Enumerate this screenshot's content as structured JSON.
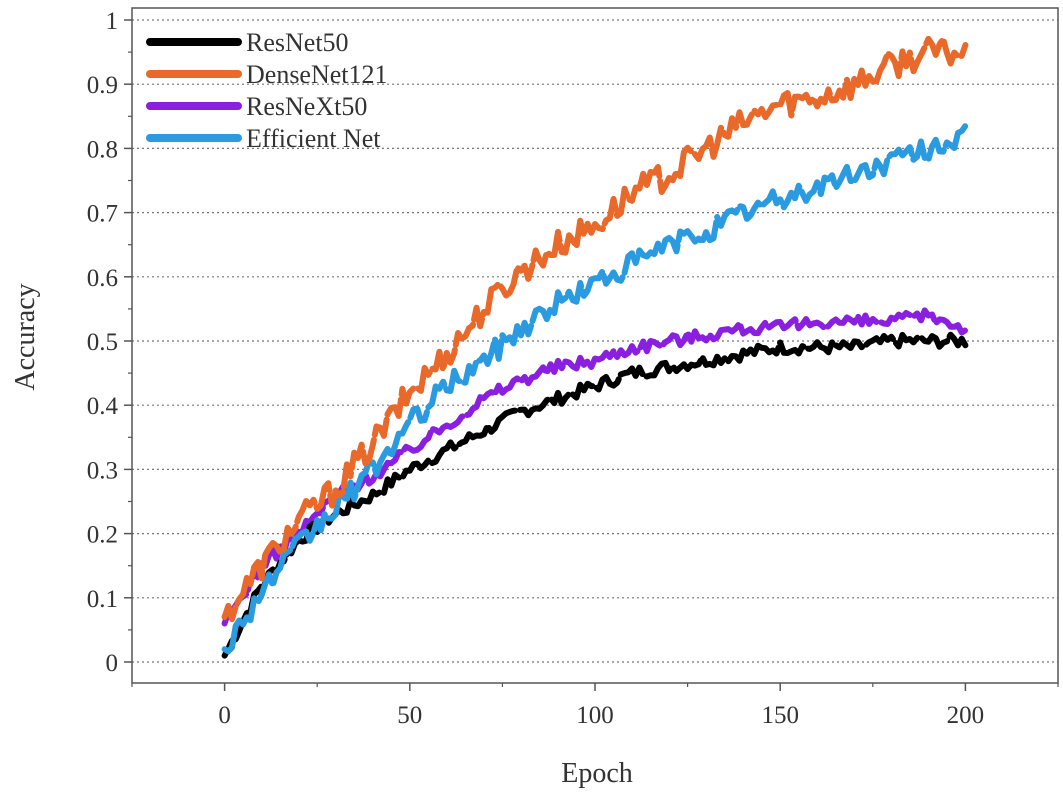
{
  "chart_data": {
    "type": "line",
    "title": "",
    "xlabel": "Epoch",
    "ylabel": "Accuracy",
    "xlim": [
      -25,
      225
    ],
    "ylim": [
      0,
      1
    ],
    "xticks": [
      0,
      50,
      100,
      150,
      200
    ],
    "yticks": [
      0,
      0.1,
      0.2,
      0.3,
      0.4,
      0.5,
      0.6,
      0.7,
      0.8,
      0.9,
      1
    ],
    "ytick_labels": [
      "0",
      "0.1",
      "0.2",
      "0.3",
      "0.4",
      "0.5",
      "0.6",
      "0.7",
      "0.8",
      "0.9",
      "1"
    ],
    "grid": "horizontal dotted",
    "legend_position": "top-left",
    "x": [
      0,
      10,
      20,
      30,
      40,
      50,
      60,
      70,
      80,
      90,
      100,
      110,
      120,
      130,
      140,
      150,
      160,
      170,
      180,
      190,
      200
    ],
    "series": [
      {
        "name": "ResNet50",
        "color": "#000000",
        "values": [
          0.01,
          0.12,
          0.19,
          0.23,
          0.26,
          0.3,
          0.33,
          0.36,
          0.39,
          0.41,
          0.43,
          0.45,
          0.46,
          0.47,
          0.48,
          0.49,
          0.49,
          0.49,
          0.5,
          0.5,
          0.5
        ]
      },
      {
        "name": "DenseNet121",
        "color": "#E8692A",
        "values": [
          0.07,
          0.15,
          0.22,
          0.27,
          0.34,
          0.42,
          0.48,
          0.55,
          0.61,
          0.65,
          0.68,
          0.73,
          0.76,
          0.8,
          0.84,
          0.87,
          0.88,
          0.9,
          0.93,
          0.95,
          0.95
        ]
      },
      {
        "name": "ResNeXt50",
        "color": "#8B1FE0",
        "values": [
          0.06,
          0.15,
          0.2,
          0.26,
          0.29,
          0.33,
          0.37,
          0.41,
          0.44,
          0.46,
          0.47,
          0.49,
          0.5,
          0.51,
          0.52,
          0.52,
          0.53,
          0.53,
          0.53,
          0.54,
          0.52
        ]
      },
      {
        "name": "Efficient Net",
        "color": "#2A9BE0",
        "values": [
          0.02,
          0.11,
          0.18,
          0.24,
          0.3,
          0.37,
          0.43,
          0.47,
          0.52,
          0.56,
          0.59,
          0.62,
          0.65,
          0.67,
          0.7,
          0.72,
          0.74,
          0.76,
          0.78,
          0.8,
          0.82
        ]
      }
    ]
  }
}
